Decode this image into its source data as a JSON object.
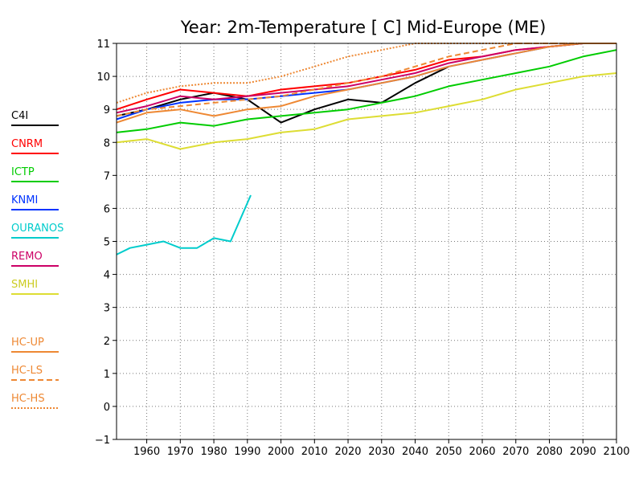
{
  "chart_data": {
    "type": "line",
    "title": "Year: 2m-Temperature [  C] Mid-Europe (ME)",
    "xlabel": "",
    "ylabel": "",
    "xlim": [
      1951,
      2100
    ],
    "ylim": [
      -1,
      11
    ],
    "x_ticks": [
      1960,
      1970,
      1980,
      1990,
      2000,
      2010,
      2020,
      2030,
      2040,
      2050,
      2060,
      2070,
      2080,
      2090,
      2100
    ],
    "y_ticks": [
      -1,
      0,
      1,
      2,
      3,
      4,
      5,
      6,
      7,
      8,
      9,
      10,
      11
    ],
    "grid": true,
    "legend_position": "left",
    "series": [
      {
        "name": "C4I",
        "color": "#000000",
        "style": "solid",
        "x": [
          1951,
          1960,
          1970,
          1980,
          1990,
          2000,
          2010,
          2020,
          2030,
          2040,
          2050
        ],
        "y": [
          8.8,
          9.0,
          9.3,
          9.5,
          9.3,
          8.6,
          9.0,
          9.3,
          9.2,
          9.8,
          10.3
        ]
      },
      {
        "name": "CNRM",
        "color": "#ff0000",
        "style": "solid",
        "x": [
          1951,
          1960,
          1970,
          1980,
          1990,
          2000,
          2010,
          2020,
          2030,
          2040,
          2050,
          2060,
          2070,
          2080,
          2090,
          2100
        ],
        "y": [
          9.0,
          9.3,
          9.6,
          9.5,
          9.4,
          9.6,
          9.7,
          9.8,
          10.0,
          10.2,
          10.5,
          10.6,
          10.8,
          10.9,
          11.0,
          11.0
        ]
      },
      {
        "name": "ICTP",
        "color": "#00cc00",
        "style": "solid",
        "x": [
          1951,
          1960,
          1970,
          1980,
          1990,
          2000,
          2010,
          2020,
          2030,
          2040,
          2050,
          2060,
          2070,
          2080,
          2090,
          2100
        ],
        "y": [
          8.3,
          8.4,
          8.6,
          8.5,
          8.7,
          8.8,
          8.9,
          9.0,
          9.2,
          9.4,
          9.7,
          9.9,
          10.1,
          10.3,
          10.6,
          10.8
        ]
      },
      {
        "name": "KNMI",
        "color": "#0033ff",
        "style": "solid",
        "x": [
          1951,
          1960,
          1970,
          1980,
          1990,
          2000,
          2010,
          2020,
          2030,
          2040,
          2050,
          2060,
          2070,
          2080,
          2090,
          2100
        ],
        "y": [
          8.7,
          9.0,
          9.2,
          9.3,
          9.3,
          9.4,
          9.5,
          9.6,
          9.8,
          10.0,
          10.3,
          10.5,
          10.7,
          10.9,
          11.0,
          11.0
        ]
      },
      {
        "name": "OURANOS",
        "color": "#00cccc",
        "style": "solid",
        "x": [
          1951,
          1955,
          1960,
          1965,
          1970,
          1975,
          1980,
          1985,
          1991
        ],
        "y": [
          4.6,
          4.8,
          4.9,
          5.0,
          4.8,
          4.8,
          5.1,
          5.0,
          6.4
        ]
      },
      {
        "name": "REMO",
        "color": "#cc0066",
        "style": "solid",
        "x": [
          1951,
          1960,
          1970,
          1980,
          1990,
          2000,
          2010,
          2020,
          2030,
          2040,
          2050,
          2060,
          2070,
          2080,
          2090,
          2100
        ],
        "y": [
          8.9,
          9.1,
          9.4,
          9.3,
          9.4,
          9.5,
          9.6,
          9.7,
          9.9,
          10.1,
          10.4,
          10.6,
          10.8,
          10.9,
          11.0,
          11.0
        ]
      },
      {
        "name": "SMHI",
        "color": "#dddd33",
        "style": "solid",
        "x": [
          1951,
          1960,
          1970,
          1980,
          1990,
          2000,
          2010,
          2020,
          2030,
          2040,
          2050,
          2060,
          2070,
          2080,
          2090,
          2100
        ],
        "y": [
          8.0,
          8.1,
          7.8,
          8.0,
          8.1,
          8.3,
          8.4,
          8.7,
          8.8,
          8.9,
          9.1,
          9.3,
          9.6,
          9.8,
          10.0,
          10.1
        ]
      },
      {
        "name": "HC-UP",
        "color": "#ee8833",
        "style": "solid",
        "x": [
          1951,
          1960,
          1970,
          1980,
          1990,
          2000,
          2010,
          2020,
          2030,
          2040,
          2050,
          2060,
          2070,
          2080,
          2090,
          2100
        ],
        "y": [
          8.6,
          8.9,
          9.0,
          8.8,
          9.0,
          9.1,
          9.4,
          9.6,
          9.8,
          10.0,
          10.3,
          10.5,
          10.7,
          10.9,
          11.0,
          11.0
        ]
      },
      {
        "name": "HC-LS",
        "color": "#ee8833",
        "style": "dashed",
        "x": [
          1951,
          1960,
          1970,
          1980,
          1990,
          2000,
          2010,
          2020,
          2030,
          2040,
          2050,
          2060,
          2070,
          2080,
          2090,
          2100
        ],
        "y": [
          8.8,
          9.0,
          9.1,
          9.2,
          9.3,
          9.4,
          9.6,
          9.8,
          10.0,
          10.3,
          10.6,
          10.8,
          11.0,
          11.0,
          11.0,
          11.0
        ]
      },
      {
        "name": "HC-HS",
        "color": "#ee8833",
        "style": "dotted",
        "x": [
          1951,
          1960,
          1970,
          1980,
          1990,
          2000,
          2010,
          2020,
          2030,
          2040,
          2050,
          2060,
          2070,
          2080,
          2090,
          2100
        ],
        "y": [
          9.2,
          9.5,
          9.7,
          9.8,
          9.8,
          10.0,
          10.3,
          10.6,
          10.8,
          11.0,
          11.0,
          11.0,
          11.0,
          11.0,
          11.0,
          11.0
        ]
      }
    ]
  }
}
